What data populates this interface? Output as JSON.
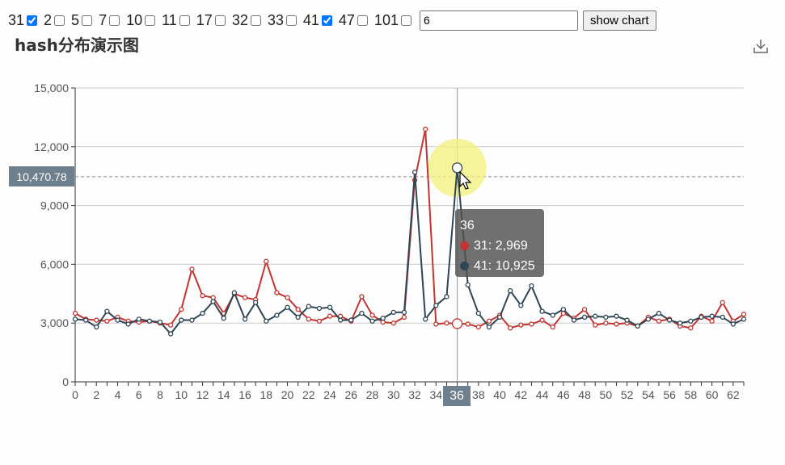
{
  "controls": {
    "options": [
      {
        "label": "31",
        "checked": true
      },
      {
        "label": "2",
        "checked": false
      },
      {
        "label": "5",
        "checked": false
      },
      {
        "label": "7",
        "checked": false
      },
      {
        "label": "10",
        "checked": false
      },
      {
        "label": "11",
        "checked": false
      },
      {
        "label": "17",
        "checked": false
      },
      {
        "label": "32",
        "checked": false
      },
      {
        "label": "33",
        "checked": false
      },
      {
        "label": "41",
        "checked": true
      },
      {
        "label": "47",
        "checked": false
      },
      {
        "label": "101",
        "checked": false
      }
    ],
    "input_value": "6",
    "button_label": "show chart"
  },
  "colors": {
    "series31": "#c23531",
    "series41": "#2f4554",
    "pointer_label": "#6e7f8d",
    "hover": "#f3f07a"
  },
  "chart_data": {
    "type": "line",
    "title": "hash分布演示图",
    "x": [
      0,
      1,
      2,
      3,
      4,
      5,
      6,
      7,
      8,
      9,
      10,
      11,
      12,
      13,
      14,
      15,
      16,
      17,
      18,
      19,
      20,
      21,
      22,
      23,
      24,
      25,
      26,
      27,
      28,
      29,
      30,
      31,
      32,
      33,
      34,
      35,
      36,
      37,
      38,
      39,
      40,
      41,
      42,
      43,
      44,
      45,
      46,
      47,
      48,
      49,
      50,
      51,
      52,
      53,
      54,
      55,
      56,
      57,
      58,
      59,
      60,
      61,
      62,
      63
    ],
    "x_tick_labels": [
      "0",
      "2",
      "4",
      "6",
      "8",
      "10",
      "12",
      "14",
      "16",
      "18",
      "20",
      "22",
      "24",
      "26",
      "28",
      "30",
      "32",
      "34",
      "36",
      "38",
      "40",
      "42",
      "44",
      "46",
      "48",
      "50",
      "52",
      "54",
      "56",
      "58",
      "60",
      "62"
    ],
    "ylim": [
      0,
      15000
    ],
    "y_tick_labels": [
      "0",
      "3,000",
      "6,000",
      "9,000",
      "12,000",
      "15,000"
    ],
    "grid": true,
    "series": [
      {
        "name": "31",
        "values": [
          3500,
          3200,
          3150,
          3100,
          3300,
          3100,
          3050,
          3100,
          3000,
          2900,
          3700,
          5750,
          4400,
          4300,
          3500,
          4500,
          4300,
          4200,
          6150,
          4550,
          4300,
          3700,
          3200,
          3100,
          3350,
          3350,
          3100,
          4350,
          3400,
          3050,
          3000,
          3300,
          10300,
          12900,
          2950,
          3000,
          2969,
          2950,
          2800,
          3100,
          3400,
          2750,
          2900,
          2950,
          3150,
          2800,
          3500,
          3250,
          3700,
          2900,
          3000,
          2950,
          3000,
          2850,
          3300,
          3100,
          3200,
          2850,
          2750,
          3350,
          3100,
          4050,
          3100,
          3450
        ]
      },
      {
        "name": "41",
        "values": [
          3200,
          3150,
          2800,
          3600,
          3150,
          2950,
          3200,
          3100,
          3050,
          2450,
          3150,
          3150,
          3500,
          4100,
          3250,
          4550,
          3200,
          4050,
          3100,
          3400,
          3800,
          3300,
          3850,
          3750,
          3800,
          3150,
          3150,
          3500,
          3100,
          3250,
          3550,
          3550,
          10700,
          3200,
          3900,
          4350,
          10925,
          4950,
          3500,
          2800,
          3300,
          4650,
          3900,
          4900,
          3600,
          3400,
          3700,
          3150,
          3300,
          3350,
          3300,
          3350,
          3150,
          2850,
          3200,
          3500,
          3150,
          3000,
          3100,
          3300,
          3350,
          3300,
          2950,
          3200
        ]
      }
    ],
    "tooltip": {
      "x": "36",
      "rows": [
        {
          "name": "31",
          "value": "2,969"
        },
        {
          "name": "41",
          "value": "10,925"
        }
      ]
    },
    "axis_pointer": {
      "y": 10470.78,
      "y_label": "10,470.78",
      "x_label": "36"
    }
  }
}
